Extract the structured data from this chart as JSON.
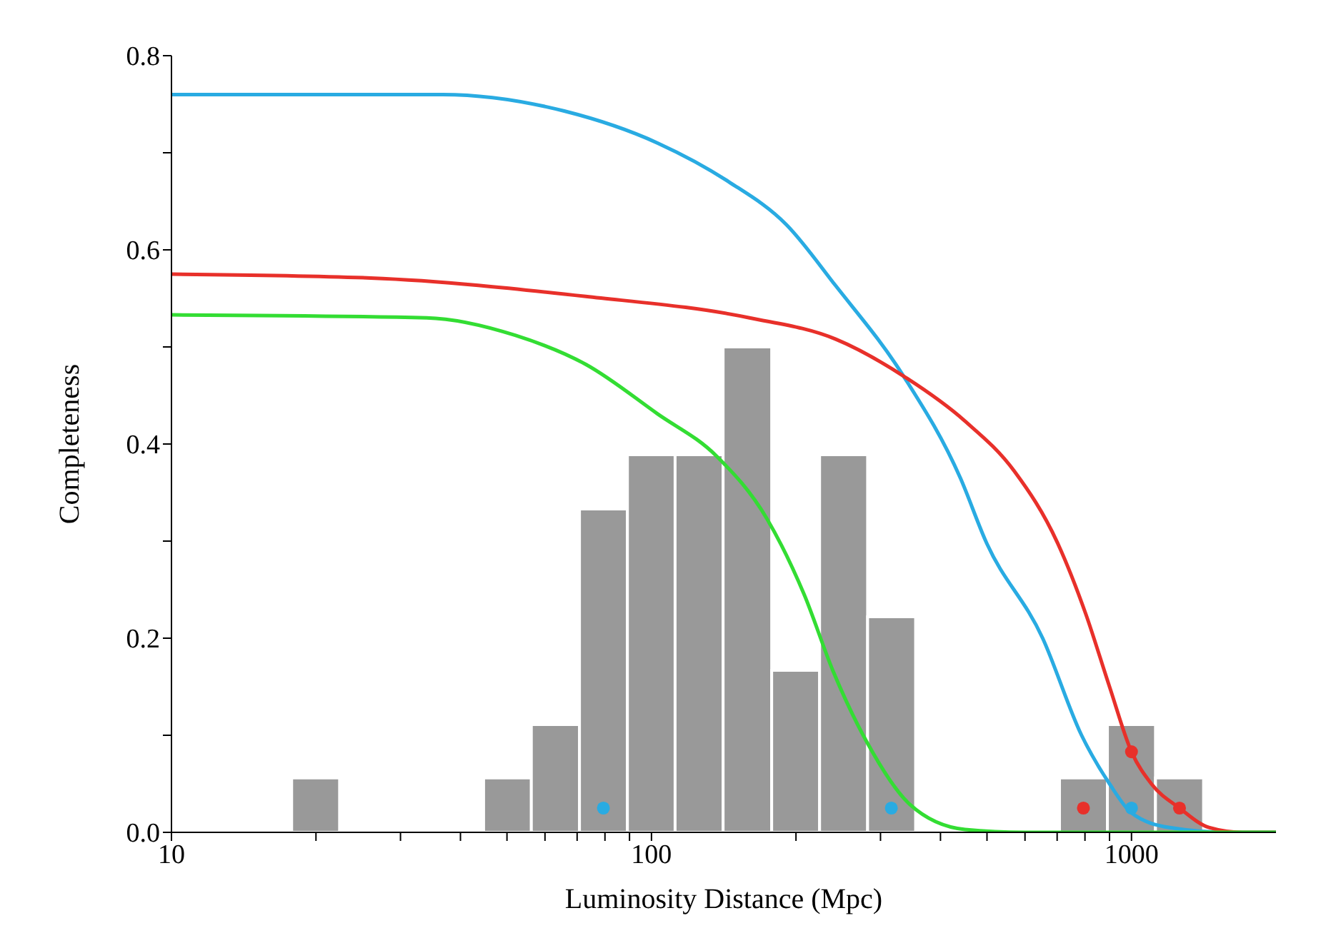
{
  "chart_data": {
    "type": "histogram",
    "xlabel": "Luminosity Distance (Mpc)",
    "ylabel": "Completeness",
    "log": "x",
    "grid": false,
    "legend": false,
    "xlim": [
      10,
      2000
    ],
    "ylim": [
      0,
      0.8
    ],
    "xticks": [
      10,
      {
        "value": 20,
        "label": null
      },
      {
        "value": 30,
        "label": null
      },
      {
        "value": 40,
        "label": null
      },
      {
        "value": 50,
        "label": null
      },
      {
        "value": 60,
        "label": null
      },
      {
        "value": 70,
        "label": null
      },
      {
        "value": 80,
        "label": null
      },
      {
        "value": 90,
        "label": null
      },
      100,
      {
        "value": 200,
        "label": null
      },
      {
        "value": 300,
        "label": null
      },
      {
        "value": 400,
        "label": null
      },
      {
        "value": 500,
        "label": null
      },
      {
        "value": 600,
        "label": null
      },
      {
        "value": 700,
        "label": null
      },
      {
        "value": 800,
        "label": null
      },
      {
        "value": 900,
        "label": null
      },
      1000
    ],
    "yticks": [
      {
        "value": 0,
        "label": "0.0"
      },
      {
        "value": 0.1,
        "label": null
      },
      0.2,
      {
        "value": 0.3,
        "label": null
      },
      0.4,
      {
        "value": 0.5,
        "label": null
      },
      0.6,
      {
        "value": 0.7,
        "label": null
      },
      0.8
    ],
    "bins": [
      17.8,
      22.4,
      44.7,
      56.2,
      70.8,
      89.1,
      112,
      141,
      178,
      224,
      282,
      355,
      708,
      891,
      1122,
      1413
    ],
    "values": [
      0.056,
      0,
      0.056,
      0.111,
      0.333,
      0.389,
      0.389,
      0.5,
      0.167,
      0.389,
      0.222,
      0,
      0.056,
      0.111,
      0.056
    ],
    "color": "#999999",
    "series": [
      {
        "type": "line",
        "color": "#29abe2",
        "x": [
          10,
          36.7,
          65.8,
          103,
          145,
          191,
          242,
          335,
          440,
          497,
          653,
          787,
          900,
          1000,
          1200,
          1600,
          2000
        ],
        "values": [
          0.76,
          0.76,
          0.743,
          0.71,
          0.67,
          0.626,
          0.563,
          0.47,
          0.365,
          0.3,
          0.2,
          0.1,
          0.05,
          0.02,
          0.005,
          0,
          0
        ]
      },
      {
        "type": "line",
        "color": "#e8302a",
        "x": [
          10,
          26,
          73,
          160,
          242,
          335,
          449,
          570,
          700,
          803,
          900,
          1000,
          1100,
          1259,
          1450,
          1700,
          2000
        ],
        "values": [
          0.575,
          0.571,
          0.552,
          0.53,
          0.508,
          0.47,
          0.424,
          0.372,
          0.299,
          0.225,
          0.15,
          0.083,
          0.05,
          0.025,
          0.005,
          0,
          0
        ]
      },
      {
        "type": "line",
        "color": "#33dd33",
        "x": [
          10,
          34,
          52,
          73,
          103,
          137,
          174,
          208,
          239,
          281,
          345,
          450,
          600,
          2000
        ],
        "values": [
          0.533,
          0.53,
          0.512,
          0.482,
          0.431,
          0.387,
          0.323,
          0.245,
          0.166,
          0.093,
          0.029,
          0.003,
          0,
          0
        ]
      },
      {
        "type": "scatter",
        "color": "#29abe2",
        "marker": "circle",
        "x": [
          79.4,
          316,
          1000
        ],
        "values": [
          0.025,
          0.025,
          0.025
        ]
      },
      {
        "type": "scatter",
        "color": "#e8302a",
        "marker": "circle",
        "x": [
          794,
          1000,
          1259
        ],
        "values": [
          0.025,
          0.083,
          0.025
        ]
      }
    ]
  }
}
